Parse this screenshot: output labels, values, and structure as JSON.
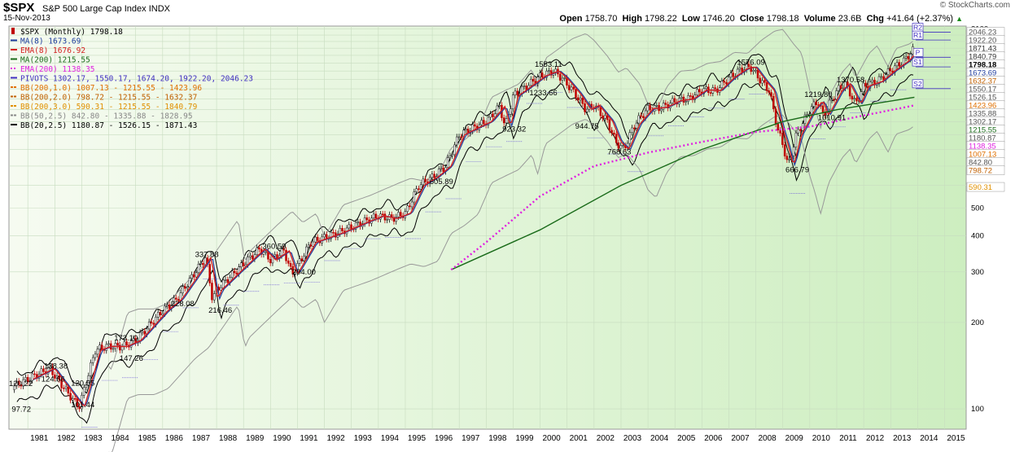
{
  "header": {
    "symbol": "$SPX",
    "name": "S&P 500 Large Cap Index",
    "exchange": "INDX",
    "date": "15-Nov-2013",
    "open_label": "Open",
    "open": "1758.70",
    "high_label": "High",
    "high": "1798.22",
    "low_label": "Low",
    "low": "1746.20",
    "close_label": "Close",
    "close": "1798.18",
    "volume_label": "Volume",
    "volume": "23.6B",
    "chg_label": "Chg",
    "chg": "+41.64 (+2.37%)",
    "arrow": "▲",
    "credit": "© StockCharts.com"
  },
  "legend": [
    {
      "text": "$SPX (Monthly) 1798.18",
      "color": "#000000",
      "marker": "candle"
    },
    {
      "text": "MA(8) 1673.69",
      "color": "#1f3d9e",
      "marker": "line"
    },
    {
      "text": "EMA(8) 1676.92",
      "color": "#d42020",
      "marker": "line"
    },
    {
      "text": "MA(200) 1215.55",
      "color": "#1a6b1a",
      "marker": "line"
    },
    {
      "text": "EMA(200) 1138.35",
      "color": "#e020e0",
      "marker": "dotted"
    },
    {
      "text": "PIVOTS 1302.17, 1550.17, 1674.20, 1922.20, 2046.23",
      "color": "#4030c0",
      "marker": "line"
    },
    {
      "text": "BB(200,1.0) 1007.13 - 1215.55 - 1423.96",
      "color": "#e07000",
      "marker": "dashed"
    },
    {
      "text": "BB(200,2.0) 798.72 - 1215.55 - 1632.37",
      "color": "#c06000",
      "marker": "dashed"
    },
    {
      "text": "BB(200,3.0) 590.31 - 1215.55 - 1840.79",
      "color": "#e09000",
      "marker": "dashed"
    },
    {
      "text": "BB(50,2.5) 842.80 - 1335.88 - 1828.95",
      "color": "#888888",
      "marker": "dashed"
    },
    {
      "text": "BB(20,2.5) 1180.87 - 1526.15 - 1871.43",
      "color": "#000000",
      "marker": "line"
    }
  ],
  "chart_data": {
    "type": "line",
    "title": "$SPX S&P 500 Large Cap Index (Monthly)",
    "y_scale": "log",
    "ylim": [
      85,
      2150
    ],
    "xlim": [
      1980.3,
      2015.8
    ],
    "grid": true,
    "y_ticks": [
      "2100",
      "2000",
      "1900",
      "1800",
      "1700",
      "1600",
      "1500",
      "1400",
      "1300",
      "1200",
      "1100",
      "1000",
      "900",
      "800",
      "700",
      "600",
      "500",
      "400",
      "300",
      "200",
      "100"
    ],
    "x_ticks": [
      "1981",
      "1982",
      "1983",
      "1984",
      "1985",
      "1986",
      "1987",
      "1988",
      "1989",
      "1990",
      "1991",
      "1992",
      "1993",
      "1994",
      "1995",
      "1996",
      "1997",
      "1998",
      "1999",
      "2000",
      "2001",
      "2002",
      "2003",
      "2004",
      "2005",
      "2006",
      "2007",
      "2008",
      "2009",
      "2010",
      "2011",
      "2012",
      "2013",
      "2014",
      "2015"
    ],
    "series": [
      {
        "name": "$SPX",
        "x": [
          1980.5,
          1981.8,
          1982.6,
          1982.9,
          1983.5,
          1983.9,
          1984.5,
          1985.0,
          1986.0,
          1986.5,
          1987.0,
          1987.6,
          1987.85,
          1988.0,
          1989.0,
          1989.6,
          1990.0,
          1990.5,
          1990.8,
          1991.5,
          1992.5,
          1993.5,
          1994.0,
          1994.5,
          1995.0,
          1995.5,
          1996.0,
          1996.5,
          1997.0,
          1997.5,
          1998.0,
          1998.5,
          1998.7,
          1999.0,
          1999.5,
          2000.0,
          2000.5,
          2000.8,
          2001.3,
          2001.7,
          2002.0,
          2002.5,
          2002.8,
          2003.1,
          2003.5,
          2004.0,
          2004.5,
          2005.0,
          2005.5,
          2006.0,
          2006.5,
          2007.0,
          2007.5,
          2007.8,
          2008.2,
          2008.5,
          2008.8,
          2009.0,
          2009.2,
          2009.5,
          2010.0,
          2010.3,
          2010.5,
          2011.0,
          2011.3,
          2011.7,
          2012.0,
          2012.5,
          2013.0,
          2013.5,
          2013.88
        ],
        "values": [
          120.22,
          138.38,
          110,
          101.44,
          160,
          165,
          165,
          173.1,
          220,
          240,
          280,
          337.88,
          240,
          260,
          320,
          360.59,
          330,
          355,
          294.0,
          380,
          410,
          450,
          470,
          460,
          480,
          600,
          640,
          700,
          900,
          950,
          1000,
          1130,
          960,
          1230,
          1330,
          1440,
          1500,
          1420,
          1250,
          1100,
          1140,
          1000,
          850,
          800,
          980,
          1110,
          1120,
          1180,
          1200,
          1290,
          1280,
          1420,
          1530,
          1550,
          1380,
          1280,
          950,
          830,
          700,
          900,
          1100,
          1180,
          1050,
          1280,
          1360,
          1150,
          1330,
          1380,
          1510,
          1630,
          1798.18
        ]
      },
      {
        "name": "MA(200)",
        "x": [
          1996.7,
          2000.0,
          2003.0,
          2006.0,
          2009.0,
          2011.0,
          2013.88
        ],
        "values": [
          305,
          420,
          600,
          800,
          1000,
          1100,
          1215.55
        ]
      },
      {
        "name": "EMA(200)",
        "x": [
          1996.7,
          1998.0,
          2000.0,
          2002.0,
          2004.0,
          2006.0,
          2008.0,
          2010.0,
          2012.0,
          2013.88
        ],
        "values": [
          305,
          380,
          550,
          700,
          780,
          850,
          920,
          960,
          1050,
          1138.35
        ]
      }
    ],
    "pivot_lines": [
      {
        "name": "R2",
        "value": 2046.23
      },
      {
        "name": "R1",
        "value": 1922.2
      },
      {
        "name": "P",
        "value": 1674.2
      },
      {
        "name": "S1",
        "value": 1550.17
      },
      {
        "name": "S2",
        "value": 1302.17
      }
    ],
    "right_labels": [
      {
        "value": 2046.23,
        "text": "2046.23",
        "color": "#555555"
      },
      {
        "value": 1922.2,
        "text": "1922.20",
        "color": "#555555"
      },
      {
        "value": 1871.43,
        "text": "1871.43",
        "color": "#333333"
      },
      {
        "value": 1840.79,
        "text": "1840.79",
        "color": "#333333"
      },
      {
        "value": 1798.18,
        "text": "1798.18",
        "color": "#000000",
        "bold": true
      },
      {
        "value": 1673.69,
        "text": "1673.69",
        "color": "#1f3d9e"
      },
      {
        "value": 1632.37,
        "text": "1632.37",
        "color": "#c06000"
      },
      {
        "value": 1550.17,
        "text": "1550.17",
        "color": "#555555"
      },
      {
        "value": 1526.15,
        "text": "1526.15",
        "color": "#555555"
      },
      {
        "value": 1423.96,
        "text": "1423.96",
        "color": "#e07000"
      },
      {
        "value": 1335.88,
        "text": "1335.88",
        "color": "#555555"
      },
      {
        "value": 1302.17,
        "text": "1302.17",
        "color": "#555555"
      },
      {
        "value": 1215.55,
        "text": "1215.55",
        "color": "#1a6b1a"
      },
      {
        "value": 1180.87,
        "text": "1180.87",
        "color": "#555555"
      },
      {
        "value": 1138.35,
        "text": "1138.35",
        "color": "#e020e0"
      },
      {
        "value": 1007.13,
        "text": "1007.13",
        "color": "#e07000"
      },
      {
        "value": 842.8,
        "text": "842.80",
        "color": "#555555"
      },
      {
        "value": 798.72,
        "text": "798.72",
        "color": "#c06000"
      },
      {
        "value": 590.31,
        "text": "590.31",
        "color": "#e09000"
      }
    ],
    "annotations": [
      {
        "x": 1980.3,
        "y": 120.22,
        "text": "120.22"
      },
      {
        "x": 1980.4,
        "y": 97.72,
        "text": "97.72"
      },
      {
        "x": 1981.6,
        "y": 138.38,
        "text": "138.38"
      },
      {
        "x": 1981.5,
        "y": 124.66,
        "text": "124.66"
      },
      {
        "x": 1982.6,
        "y": 120.55,
        "text": "120.55"
      },
      {
        "x": 1982.6,
        "y": 101.44,
        "text": "101.44"
      },
      {
        "x": 1984.2,
        "y": 173.1,
        "text": "173.10"
      },
      {
        "x": 1984.4,
        "y": 147.26,
        "text": "147.26"
      },
      {
        "x": 1986.3,
        "y": 228.08,
        "text": "228.08"
      },
      {
        "x": 1987.2,
        "y": 337.88,
        "text": "337.88"
      },
      {
        "x": 1987.7,
        "y": 216.46,
        "text": "216.46"
      },
      {
        "x": 1989.7,
        "y": 360.59,
        "text": "360.59"
      },
      {
        "x": 1990.8,
        "y": 294.0,
        "text": "294.00"
      },
      {
        "x": 1995.9,
        "y": 605.89,
        "text": "605.89"
      },
      {
        "x": 1998.6,
        "y": 923.32,
        "text": "923.32"
      },
      {
        "x": 1999.8,
        "y": 1553.11,
        "text": "1553.11"
      },
      {
        "x": 1999.6,
        "y": 1233.66,
        "text": "1233.66"
      },
      {
        "x": 2001.3,
        "y": 944.75,
        "text": "944.75"
      },
      {
        "x": 2002.5,
        "y": 768.63,
        "text": "768.63"
      },
      {
        "x": 2007.3,
        "y": 1576.09,
        "text": "1576.09"
      },
      {
        "x": 2009.1,
        "y": 666.79,
        "text": "666.79"
      },
      {
        "x": 2009.8,
        "y": 1219.8,
        "text": "1219.80"
      },
      {
        "x": 2010.3,
        "y": 1010.91,
        "text": "1010.91"
      },
      {
        "x": 2011.0,
        "y": 1370.58,
        "text": "1370.58"
      }
    ]
  }
}
